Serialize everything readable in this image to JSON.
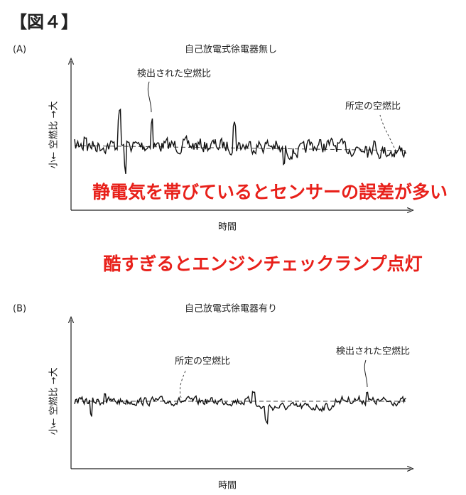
{
  "figure_label": "【図４】",
  "panels": [
    {
      "label": "(A)",
      "title": "自己放電式徐電器無し",
      "y_axis_label": "小← 空燃比 →大",
      "x_axis_label": "時間",
      "annotations": [
        "検出された空燃比",
        "所定の空燃比"
      ],
      "overlay": "静電気を帯びているとセンサーの誤差が多い"
    },
    {
      "label": "(B)",
      "title": "自己放電式徐電器有り",
      "y_axis_label": "小← 空燃比 →大",
      "x_axis_label": "時間",
      "annotations": [
        "所定の空燃比",
        "検出された空燃比"
      ]
    }
  ],
  "caption": "酷すぎるとエンジンチェックランプ点灯"
}
